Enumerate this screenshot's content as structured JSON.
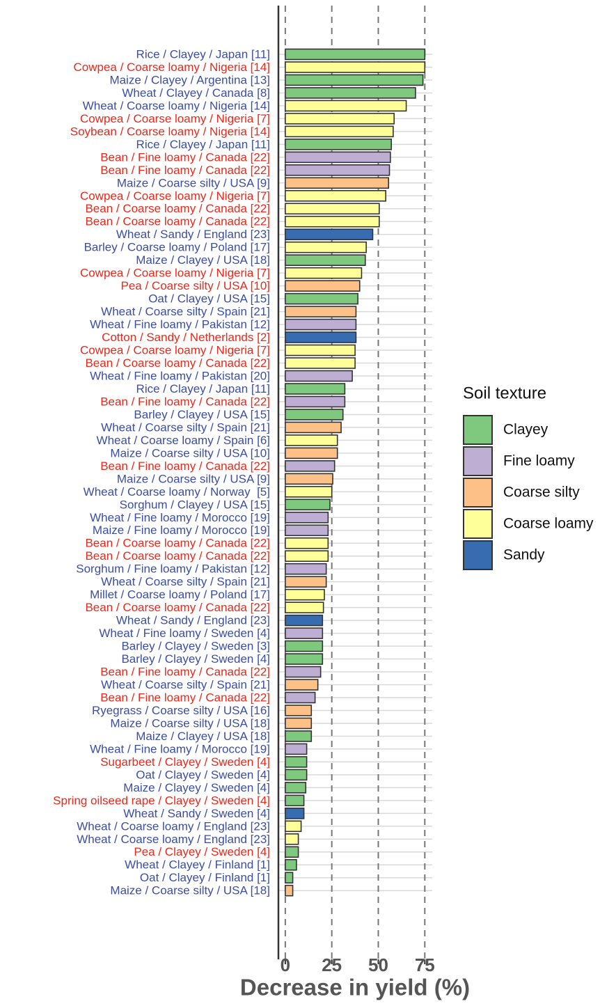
{
  "chart_data": {
    "type": "barh",
    "xlabel": "Decrease in yield (%)",
    "xlim": [
      -3.7,
      79
    ],
    "xticks": [
      0,
      25,
      50,
      75
    ],
    "grid": true,
    "categories": [
      "Rice / Clayey / Japan [11]",
      "Cowpea / Coarse loamy / Nigeria [14]",
      "Maize / Clayey / Argentina [13]",
      "Wheat / Clayey / Canada [8]",
      "Wheat / Coarse loamy / Nigeria [14]",
      "Cowpea / Coarse loamy / Nigeria [7]",
      "Soybean / Coarse loamy / Nigeria [14]",
      "Rice / Clayey / Japan [11]",
      "Bean / Fine loamy / Canada [22]",
      "Bean / Fine loamy / Canada [22]",
      "Maize / Coarse silty / USA [9]",
      "Cowpea / Coarse loamy / Nigeria [7]",
      "Bean / Coarse loamy / Canada [22]",
      "Bean / Coarse loamy / Canada [22]",
      "Wheat / Sandy / England [23]",
      "Barley / Coarse loamy / Poland [17]",
      "Maize / Clayey / USA [18]",
      "Cowpea / Coarse loamy / Nigeria [7]",
      "Pea / Coarse silty / USA [10]",
      "Oat / Clayey / USA [15]",
      "Wheat / Coarse silty / Spain [21]",
      "Wheat / Fine loamy / Pakistan [12]",
      "Cotton / Sandy / Netherlands [2]",
      "Cowpea / Coarse loamy / Nigeria [7]",
      "Bean / Coarse loamy / Canada [22]",
      "Wheat / Fine loamy / Pakistan [20]",
      "Rice / Clayey / Japan [11]",
      "Bean / Fine loamy / Canada [22]",
      "Barley / Clayey / USA [15]",
      "Wheat / Coarse silty / Spain [21]",
      "Wheat / Coarse loamy / Spain [6]",
      "Maize / Coarse silty / USA [10]",
      "Bean / Fine loamy / Canada [22]",
      "Maize / Coarse silty / USA [9]",
      "Wheat / Coarse loamy / Norway  [5]",
      "Sorghum / Clayey / USA [15]",
      "Wheat / Fine loamy / Morocco [19]",
      "Maize / Fine loamy / Morocco [19]",
      "Bean / Coarse loamy / Canada [22]",
      "Bean / Coarse loamy / Canada [22]",
      "Sorghum / Fine loamy / Pakistan [12]",
      "Wheat / Coarse silty / Spain [21]",
      "Millet / Coarse loamy / Poland [17]",
      "Bean / Coarse loamy / Canada [22]",
      "Wheat / Sandy / England [23]",
      "Wheat / Fine loamy / Sweden [4]",
      "Barley / Clayey / Sweden [3]",
      "Barley / Clayey / Sweden [4]",
      "Bean / Fine loamy / Canada [22]",
      "Wheat / Coarse silty / Spain [21]",
      "Bean / Fine loamy / Canada [22]",
      "Ryegrass / Coarse silty / USA [16]",
      "Maize / Coarse silty / USA [18]",
      "Maize / Clayey / USA [18]",
      "Wheat / Fine loamy / Morocco [19]",
      "Sugarbeet / Clayey / Sweden [4]",
      "Oat / Clayey / Sweden [4]",
      "Maize / Clayey / Sweden [4]",
      "Spring oilseed rape / Clayey / Sweden [4]",
      "Wheat / Sandy / Sweden [4]",
      "Wheat / Coarse loamy / England [23]",
      "Wheat / Coarse loamy / England [23]",
      "Pea / Clayey / Sweden [4]",
      "Wheat / Clayey / Finland [1]",
      "Oat / Clayey / Finland [1]",
      "Maize / Coarse silty / USA [18]"
    ],
    "values": [
      75,
      75,
      74,
      70,
      65,
      58.5,
      58,
      57,
      56.5,
      56,
      55.5,
      54,
      50.5,
      50.5,
      47,
      43.5,
      43,
      41,
      40,
      39,
      38,
      38,
      38,
      37.5,
      37.5,
      36,
      32,
      32,
      31,
      30,
      28,
      28,
      26.5,
      25.5,
      25,
      24,
      23,
      23,
      23,
      23,
      22,
      22,
      21,
      20.5,
      20,
      20,
      20,
      20,
      19,
      17.5,
      16,
      14,
      14,
      14,
      11.5,
      11.5,
      11.5,
      11,
      10,
      10,
      8.5,
      7,
      7,
      6,
      4,
      4
    ],
    "colors": [
      "#7fc97f",
      "#ffff99",
      "#7fc97f",
      "#7fc97f",
      "#ffff99",
      "#ffff99",
      "#ffff99",
      "#7fc97f",
      "#beaed4",
      "#beaed4",
      "#fdc086",
      "#ffff99",
      "#ffff99",
      "#ffff99",
      "#386cb0",
      "#ffff99",
      "#7fc97f",
      "#ffff99",
      "#fdc086",
      "#7fc97f",
      "#fdc086",
      "#beaed4",
      "#386cb0",
      "#ffff99",
      "#ffff99",
      "#beaed4",
      "#7fc97f",
      "#beaed4",
      "#7fc97f",
      "#fdc086",
      "#ffff99",
      "#fdc086",
      "#beaed4",
      "#fdc086",
      "#ffff99",
      "#7fc97f",
      "#beaed4",
      "#beaed4",
      "#ffff99",
      "#ffff99",
      "#beaed4",
      "#fdc086",
      "#ffff99",
      "#ffff99",
      "#386cb0",
      "#beaed4",
      "#7fc97f",
      "#7fc97f",
      "#beaed4",
      "#fdc086",
      "#beaed4",
      "#fdc086",
      "#fdc086",
      "#7fc97f",
      "#beaed4",
      "#7fc97f",
      "#7fc97f",
      "#7fc97f",
      "#7fc97f",
      "#386cb0",
      "#ffff99",
      "#ffff99",
      "#7fc97f",
      "#7fc97f",
      "#7fc97f",
      "#fdc086"
    ],
    "label_colors": [
      "#3b4ea3",
      "#e8291c",
      "#3b4ea3",
      "#3b4ea3",
      "#3b4ea3",
      "#e8291c",
      "#e8291c",
      "#3b4ea3",
      "#e8291c",
      "#e8291c",
      "#3b4ea3",
      "#e8291c",
      "#e8291c",
      "#e8291c",
      "#3b4ea3",
      "#3b4ea3",
      "#3b4ea3",
      "#e8291c",
      "#e8291c",
      "#3b4ea3",
      "#3b4ea3",
      "#3b4ea3",
      "#e8291c",
      "#e8291c",
      "#e8291c",
      "#3b4ea3",
      "#3b4ea3",
      "#e8291c",
      "#3b4ea3",
      "#3b4ea3",
      "#3b4ea3",
      "#3b4ea3",
      "#e8291c",
      "#3b4ea3",
      "#3b4ea3",
      "#3b4ea3",
      "#3b4ea3",
      "#3b4ea3",
      "#e8291c",
      "#e8291c",
      "#3b4ea3",
      "#3b4ea3",
      "#3b4ea3",
      "#e8291c",
      "#3b4ea3",
      "#3b4ea3",
      "#3b4ea3",
      "#3b4ea3",
      "#e8291c",
      "#3b4ea3",
      "#e8291c",
      "#3b4ea3",
      "#3b4ea3",
      "#3b4ea3",
      "#3b4ea3",
      "#e8291c",
      "#3b4ea3",
      "#3b4ea3",
      "#e8291c",
      "#3b4ea3",
      "#3b4ea3",
      "#3b4ea3",
      "#e8291c",
      "#3b4ea3",
      "#3b4ea3",
      "#3b4ea3"
    ],
    "legend": {
      "title": "Soil texture",
      "items": [
        {
          "name": "Clayey",
          "color": "#7fc97f"
        },
        {
          "name": "Fine loamy",
          "color": "#beaed4"
        },
        {
          "name": "Coarse silty",
          "color": "#fdc086"
        },
        {
          "name": "Coarse loamy",
          "color": "#ffff99"
        },
        {
          "name": "Sandy",
          "color": "#386cb0"
        }
      ]
    }
  }
}
